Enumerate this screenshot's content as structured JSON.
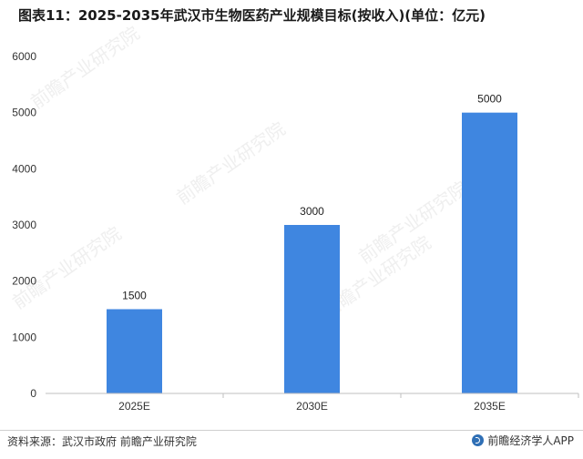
{
  "chart_data": {
    "type": "bar",
    "title": "图表11：2025-2035年武汉市生物医药产业规模目标(按收入)(单位：亿元)",
    "categories": [
      "2025E",
      "2030E",
      "2035E"
    ],
    "values": [
      1500,
      3000,
      5000
    ],
    "ylim": [
      0,
      6000
    ],
    "yticks": [
      0,
      1000,
      2000,
      3000,
      4000,
      5000,
      6000
    ],
    "bar_color": "#3f86e0",
    "grid": false,
    "xlabel": "",
    "ylabel": ""
  },
  "footer": {
    "source": "资料来源：武汉市政府 前瞻产业研究院",
    "brand": "前瞻经济学人APP",
    "brand_icon": "qianzhan-logo-icon"
  },
  "watermark": {
    "brand": "前瞻产业研究院"
  },
  "colors": {
    "axis": "#bfbfbf",
    "text": "#333333",
    "watermark": "#e4e4e4"
  }
}
